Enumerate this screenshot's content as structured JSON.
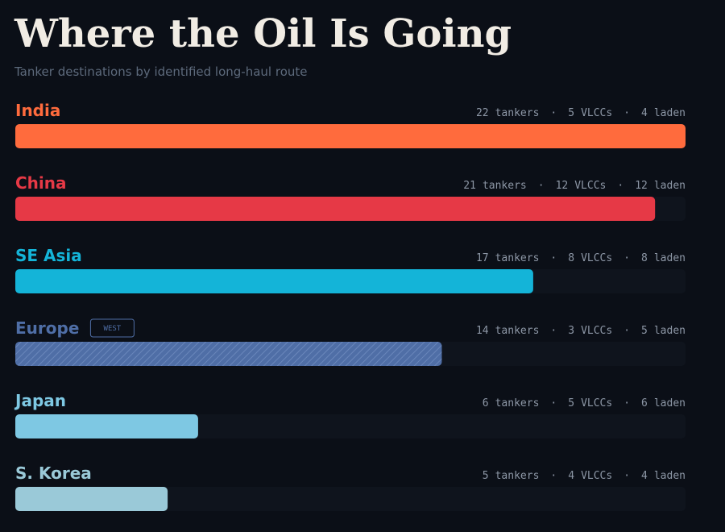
{
  "chart_data": {
    "type": "bar",
    "title": "Where the Oil Is Going",
    "subtitle": "Tanker destinations by identified long-haul route",
    "categories": [
      "India",
      "China",
      "SE Asia",
      "Europe",
      "Japan",
      "S. Korea"
    ],
    "colors": [
      "#ff6b3d",
      "#e63946",
      "#14b4d8",
      "#4f6ea6",
      "#7ec8e3",
      "#9ac9d8"
    ],
    "hatched": [
      false,
      false,
      false,
      true,
      false,
      false
    ],
    "badges": [
      null,
      null,
      null,
      "WEST",
      null,
      null
    ],
    "separator": "·",
    "xlim": [
      0,
      22
    ],
    "series": [
      {
        "name": "tankers",
        "values": [
          22,
          21,
          17,
          14,
          6,
          5
        ]
      },
      {
        "name": "VLCCs",
        "values": [
          5,
          12,
          8,
          3,
          5,
          4
        ]
      },
      {
        "name": "laden",
        "values": [
          4,
          12,
          8,
          5,
          6,
          4
        ]
      }
    ]
  }
}
